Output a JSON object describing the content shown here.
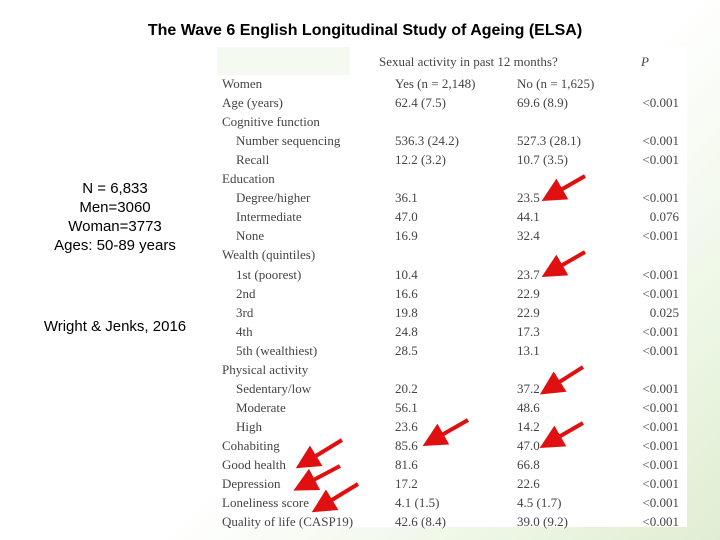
{
  "slide": {
    "title": "The Wave 6 English Longitudinal Study of Ageing (ELSA)",
    "info_lines": [
      "N = 6,833",
      "Men=3060",
      "Woman=3773",
      "Ages: 50-89 years"
    ],
    "citation": "Wright & Jenks, 2016"
  },
  "table": {
    "header_span": "Sexual activity in past 12 months?",
    "header_p": "P",
    "header_yes": "Yes (n = 2,148)",
    "header_no": "No (n = 1,625)",
    "first_label": "Women",
    "rows": [
      {
        "label": "Age (years)",
        "indent": false,
        "yes": "62.4 (7.5)",
        "no": "69.6 (8.9)",
        "p": "<0.001"
      },
      {
        "label": "Cognitive function",
        "indent": false,
        "yes": "",
        "no": "",
        "p": ""
      },
      {
        "label": "Number sequencing",
        "indent": true,
        "yes": "536.3 (24.2)",
        "no": "527.3 (28.1)",
        "p": "<0.001"
      },
      {
        "label": "Recall",
        "indent": true,
        "yes": "12.2 (3.2)",
        "no": "10.7 (3.5)",
        "p": "<0.001"
      },
      {
        "label": "Education",
        "indent": false,
        "yes": "",
        "no": "",
        "p": ""
      },
      {
        "label": "Degree/higher",
        "indent": true,
        "yes": "36.1",
        "no": "23.5",
        "p": "<0.001"
      },
      {
        "label": "Intermediate",
        "indent": true,
        "yes": "47.0",
        "no": "44.1",
        "p": "0.076"
      },
      {
        "label": "None",
        "indent": true,
        "yes": "16.9",
        "no": "32.4",
        "p": "<0.001"
      },
      {
        "label": "Wealth (quintiles)",
        "indent": false,
        "yes": "",
        "no": "",
        "p": ""
      },
      {
        "label": "1st (poorest)",
        "indent": true,
        "yes": "10.4",
        "no": "23.7",
        "p": "<0.001"
      },
      {
        "label": "2nd",
        "indent": true,
        "yes": "16.6",
        "no": "22.9",
        "p": "<0.001"
      },
      {
        "label": "3rd",
        "indent": true,
        "yes": "19.8",
        "no": "22.9",
        "p": "0.025"
      },
      {
        "label": "4th",
        "indent": true,
        "yes": "24.8",
        "no": "17.3",
        "p": "<0.001"
      },
      {
        "label": "5th (wealthiest)",
        "indent": true,
        "yes": "28.5",
        "no": "13.1",
        "p": "<0.001"
      },
      {
        "label": "Physical activity",
        "indent": false,
        "yes": "",
        "no": "",
        "p": ""
      },
      {
        "label": "Sedentary/low",
        "indent": true,
        "yes": "20.2",
        "no": "37.2",
        "p": "<0.001"
      },
      {
        "label": "Moderate",
        "indent": true,
        "yes": "56.1",
        "no": "48.6",
        "p": "<0.001"
      },
      {
        "label": "High",
        "indent": true,
        "yes": "23.6",
        "no": "14.2",
        "p": "<0.001"
      },
      {
        "label": "Cohabiting",
        "indent": false,
        "yes": "85.6",
        "no": "47.0",
        "p": "<0.001"
      },
      {
        "label": "Good health",
        "indent": false,
        "yes": "81.6",
        "no": "66.8",
        "p": "<0.001"
      },
      {
        "label": "Depression",
        "indent": false,
        "yes": "17.2",
        "no": "22.6",
        "p": "<0.001"
      },
      {
        "label": "Loneliness score",
        "indent": false,
        "yes": "4.1 (1.5)",
        "no": "4.5 (1.7)",
        "p": "<0.001"
      },
      {
        "label": "Quality of life (CASP19)",
        "indent": false,
        "yes": "42.6 (8.4)",
        "no": "39.0 (9.2)",
        "p": "<0.001"
      }
    ]
  },
  "colors": {
    "arrow": "#e01010",
    "table_text": "#444444",
    "background_accent": "#dfeed3"
  }
}
